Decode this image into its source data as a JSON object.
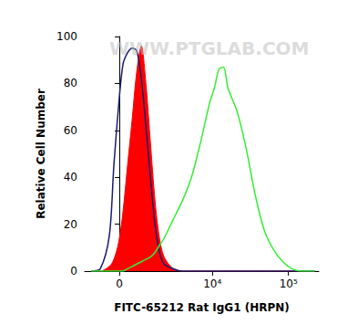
{
  "chart_data": {
    "type": "line",
    "x_label": "FITC-65212 Rat IgG1 (HRPN)",
    "y_label": "Relative Cell Number",
    "annotations": [
      "WWW.PTGLAB.COM"
    ],
    "x": [
      -1150,
      -730,
      -370,
      -200,
      -30,
      130,
      300,
      480,
      660,
      860,
      1070,
      1300,
      1560,
      1840,
      2170,
      2940,
      3950,
      5250,
      6960,
      9210,
      10580,
      12160,
      13970,
      16030,
      21140,
      27900,
      36800,
      48500,
      64000,
      84200,
      111000,
      146000,
      221500
    ],
    "series": [
      {
        "type": "area",
        "color": "#ff0000",
        "values": [
          0,
          0,
          2,
          5,
          12,
          25,
          45,
          65,
          85,
          96,
          80,
          55,
          30,
          14,
          6,
          1,
          0,
          0,
          0,
          0,
          0,
          0,
          0,
          0,
          0,
          0,
          0,
          0,
          0,
          0,
          0,
          0,
          0
        ]
      },
      {
        "type": "line",
        "color": "#1a1a6e",
        "values": [
          0,
          1,
          15,
          45,
          70,
          88,
          93,
          95,
          94,
          82,
          62,
          40,
          20,
          8,
          3,
          1,
          0,
          0,
          0,
          0,
          0,
          0,
          0,
          0,
          0,
          0,
          0,
          0,
          0,
          0,
          0,
          0,
          0
        ]
      },
      {
        "type": "line",
        "color": "#33ee33",
        "values": [
          0,
          0,
          0,
          0,
          0,
          0,
          1,
          2,
          3,
          4,
          5,
          6,
          8,
          11,
          14,
          22,
          30,
          40,
          55,
          72,
          78,
          86,
          87,
          78,
          68,
          52,
          32,
          17,
          9,
          4,
          1,
          0,
          0
        ]
      }
    ],
    "xlim": [
      -1500,
      250000
    ],
    "xticks": [
      0,
      {
        "value": 10000,
        "label": "10⁴"
      },
      {
        "value": 100000,
        "label": "10⁵"
      }
    ],
    "ylim": [
      0,
      100
    ],
    "yticks": [
      0,
      20,
      40,
      60,
      80,
      100
    ],
    "grid": false
  }
}
